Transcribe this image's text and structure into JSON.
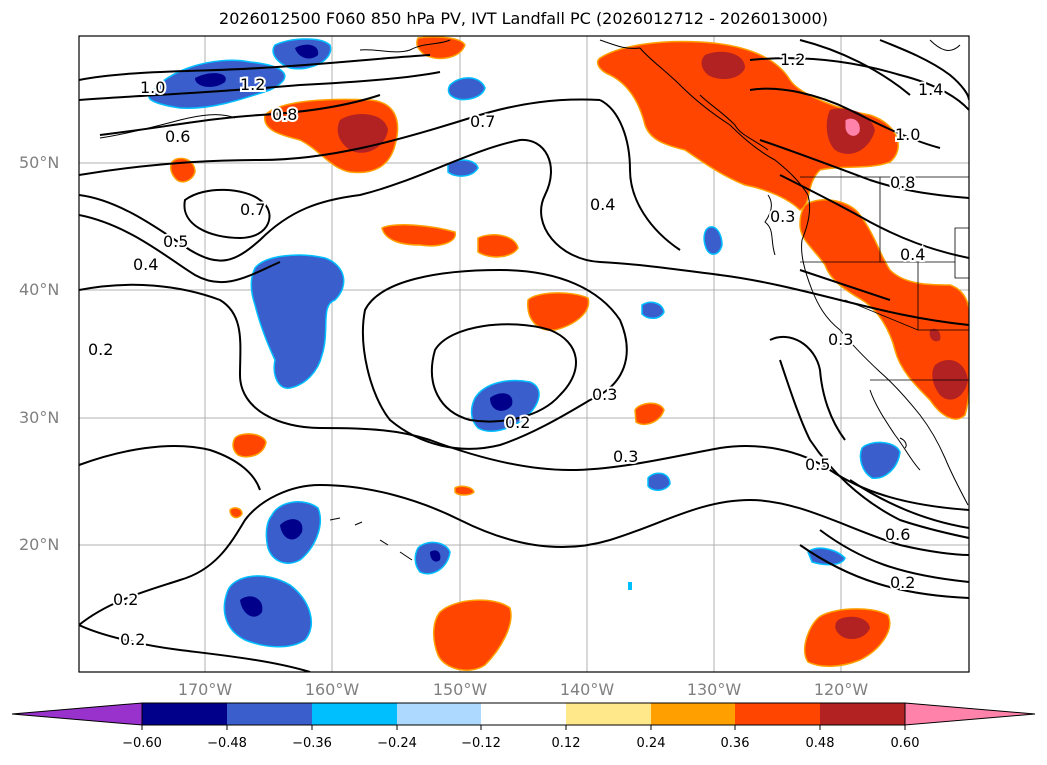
{
  "title": "2026012500 F060 850 hPa PV, IVT Landfall PC (2026012712 - 2026013000)",
  "lat_labels": [
    "50°N",
    "40°N",
    "30°N",
    "20°N"
  ],
  "lon_labels": [
    "170°W",
    "160°W",
    "150°W",
    "140°W",
    "130°W",
    "120°W"
  ],
  "contour_labels": [
    "1.0",
    "1.2",
    "0.8",
    "0.6",
    "0.7",
    "0.7",
    "0.5",
    "0.4",
    "0.2",
    "0.4",
    "0.3",
    "0.2",
    "0.3",
    "1.2",
    "1.4",
    "1.0",
    "0.8",
    "0.3",
    "0.4",
    "0.3",
    "0.5",
    "0.6",
    "0.2",
    "0.2",
    "0.2"
  ],
  "colorbar": {
    "ticks": [
      "−0.60",
      "−0.48",
      "−0.36",
      "−0.24",
      "−0.12",
      "0.12",
      "0.24",
      "0.36",
      "0.48",
      "0.60"
    ],
    "colors": [
      "#9932cc",
      "#00008b",
      "#3a5fcd",
      "#00bfff",
      "#add8ff",
      "#ffffff",
      "#ffe88a",
      "#ffa000",
      "#ff4500",
      "#b22222",
      "#ff82ab"
    ]
  },
  "colors": {
    "neg_strong": "#00008b",
    "neg_mid": "#3a5fcd",
    "neg_light": "#00bfff",
    "pos_mid": "#ff4500",
    "pos_strong": "#b22222",
    "pos_max": "#ff82ab",
    "pos_edge": "#ffa000"
  }
}
